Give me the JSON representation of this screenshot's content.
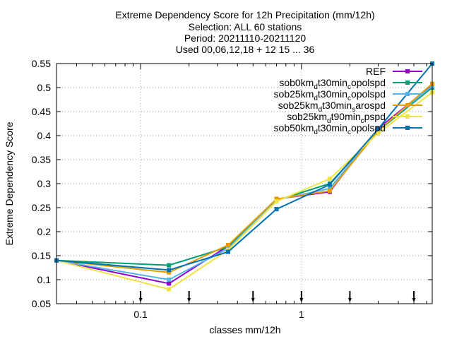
{
  "chart_data": {
    "type": "line",
    "title_lines": [
      "Extreme Dependency Score  for 12h Precipitation (mm/12h)",
      "Selection: ALL     60 stations",
      "Period: 20211110-20211120",
      "Used 00,06,12,18 + 12 15 ... 36"
    ],
    "xlabel": "classes mm/12h",
    "ylabel": "Extreme Dependency Score",
    "x_scale": "log",
    "xlim": [
      0.03,
      6.5
    ],
    "ylim": [
      0.05,
      0.55
    ],
    "y_ticks": [
      "0.05",
      "0.1",
      "0.15",
      "0.2",
      "0.25",
      "0.3",
      "0.35",
      "0.4",
      "0.45",
      "0.5",
      "0.55"
    ],
    "y_tick_values": [
      0.05,
      0.1,
      0.15,
      0.2,
      0.25,
      0.3,
      0.35,
      0.4,
      0.45,
      0.5,
      0.55
    ],
    "x_ticks": [
      "0.1",
      "1"
    ],
    "x_tick_values": [
      0.1,
      1
    ],
    "grid": true,
    "legend_position": "top-right",
    "threshold_markers": [
      0.1,
      0.2,
      0.5,
      1,
      2,
      5
    ],
    "x": [
      0.03,
      0.15,
      0.35,
      0.7,
      1.5,
      3,
      6.5
    ],
    "series": [
      {
        "label_parts": [
          [
            "REF",
            null
          ]
        ],
        "color": "#9400d3",
        "marker": "square",
        "values": [
          0.14,
          0.092,
          0.17,
          0.268,
          0.283,
          0.415,
          0.505
        ]
      },
      {
        "label_parts": [
          [
            "sob0km",
            null
          ],
          [
            "d",
            "sub"
          ],
          [
            "t30min",
            null
          ],
          [
            "c",
            "sub"
          ],
          [
            "opolspd",
            null
          ]
        ],
        "color": "#009e73",
        "marker": "square",
        "values": [
          0.14,
          0.13,
          0.168,
          0.265,
          0.3,
          0.41,
          0.5
        ]
      },
      {
        "label_parts": [
          [
            "sob25km",
            null
          ],
          [
            "d",
            "sub"
          ],
          [
            "t30min",
            null
          ],
          [
            "c",
            "sub"
          ],
          [
            "opolspd",
            null
          ]
        ],
        "color": "#56b4e9",
        "marker": "square",
        "values": [
          0.14,
          0.1,
          0.165,
          0.266,
          0.29,
          0.412,
          0.503
        ]
      },
      {
        "label_parts": [
          [
            "sob25km",
            null
          ],
          [
            "d",
            "sub"
          ],
          [
            "t30min",
            null
          ],
          [
            "s",
            "sub"
          ],
          [
            "arospd",
            null
          ]
        ],
        "color": "#e69f00",
        "marker": "square",
        "values": [
          0.14,
          0.115,
          0.172,
          0.268,
          0.285,
          0.41,
          0.508
        ]
      },
      {
        "label_parts": [
          [
            "sob25km",
            null
          ],
          [
            "d",
            "sub"
          ],
          [
            "t90min",
            null
          ],
          [
            "c",
            "sub"
          ],
          [
            "pspd",
            null
          ]
        ],
        "color": "#f0e442",
        "marker": "square",
        "values": [
          0.14,
          0.08,
          0.162,
          0.263,
          0.31,
          0.405,
          0.49
        ]
      },
      {
        "label_parts": [
          [
            "sob50km",
            null
          ],
          [
            "d",
            "sub"
          ],
          [
            "t30min",
            null
          ],
          [
            "c",
            "sub"
          ],
          [
            "opolspd",
            null
          ]
        ],
        "color": "#0072b2",
        "marker": "square",
        "values": [
          0.14,
          0.12,
          0.158,
          0.247,
          0.298,
          0.414,
          0.55
        ]
      }
    ]
  }
}
